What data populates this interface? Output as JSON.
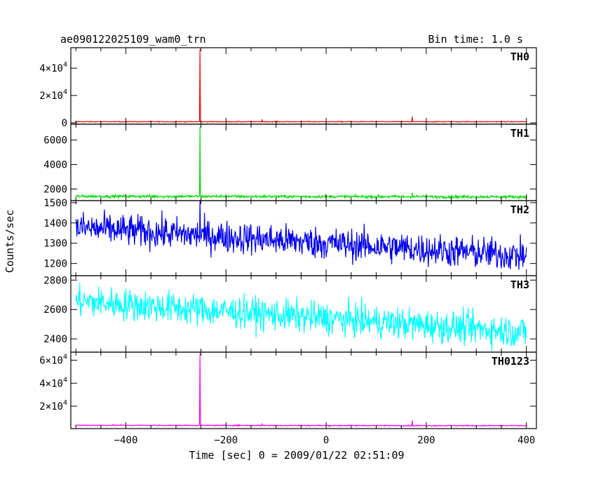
{
  "header": {
    "title": "ae090122025109_wam0_trn",
    "bin_time": "Bin time: 1.0 s"
  },
  "chart_data": {
    "type": "line",
    "xlabel": "Time [sec] 0 = 2009/01/22 02:51:09",
    "ylabel": "Counts/sec",
    "xlim": [
      -510,
      420
    ],
    "xticks": [
      -400,
      -200,
      0,
      200,
      400
    ],
    "xtick_labels": [
      "−400",
      "−200",
      "0",
      "200",
      "400"
    ],
    "panels": [
      {
        "name": "TH0",
        "color": "#ff0000",
        "ylim": [
          -1000,
          55000
        ],
        "yticks": [
          0,
          20000,
          40000
        ],
        "ytick_labels": [
          {
            "base": "0",
            "exp": ""
          },
          {
            "base": "2×10",
            "exp": "4"
          },
          {
            "base": "4×10",
            "exp": "4"
          }
        ],
        "baseline": 800,
        "noise": 150,
        "trend": 0,
        "spikes": [
          {
            "x": -252,
            "y": 54000
          },
          {
            "x": -128,
            "y": 2500
          },
          {
            "x": 172,
            "y": 4500
          }
        ]
      },
      {
        "name": "TH1",
        "color": "#00dd00",
        "ylim": [
          1050,
          7300
        ],
        "yticks": [
          2000,
          4000,
          6000
        ],
        "ytick_labels": [
          {
            "base": "2000",
            "exp": ""
          },
          {
            "base": "4000",
            "exp": ""
          },
          {
            "base": "6000",
            "exp": ""
          }
        ],
        "baseline": 1380,
        "noise": 60,
        "trend": -0.05,
        "spikes": [
          {
            "x": -252,
            "y": 7100
          },
          {
            "x": 172,
            "y": 1700
          }
        ]
      },
      {
        "name": "TH2",
        "color": "#0000ee",
        "ylim": [
          1140,
          1510
        ],
        "yticks": [
          1200,
          1300,
          1400,
          1500
        ],
        "ytick_labels": [
          {
            "base": "1200",
            "exp": ""
          },
          {
            "base": "1300",
            "exp": ""
          },
          {
            "base": "1400",
            "exp": ""
          },
          {
            "base": "1500",
            "exp": ""
          }
        ],
        "baseline": 1300,
        "noise": 40,
        "trend": -0.155,
        "spikes": [
          {
            "x": -252,
            "y": 1510
          }
        ]
      },
      {
        "name": "TH3",
        "color": "#00ffff",
        "ylim": [
          2310,
          2830
        ],
        "yticks": [
          2400,
          2600,
          2800
        ],
        "ytick_labels": [
          {
            "base": "2400",
            "exp": ""
          },
          {
            "base": "2600",
            "exp": ""
          },
          {
            "base": "2800",
            "exp": ""
          }
        ],
        "baseline": 2540,
        "noise": 55,
        "trend": -0.235,
        "spikes": []
      },
      {
        "name": "TH0123",
        "color": "#ff00ff",
        "ylim": [
          500,
          67000
        ],
        "yticks": [
          20000,
          40000,
          60000
        ],
        "ytick_labels": [
          {
            "base": "2×10",
            "exp": "4"
          },
          {
            "base": "4×10",
            "exp": "4"
          },
          {
            "base": "6×10",
            "exp": "4"
          }
        ],
        "baseline": 3200,
        "noise": 250,
        "trend": -0.4,
        "spikes": [
          {
            "x": -252,
            "y": 66000
          },
          {
            "x": -128,
            "y": 5000
          },
          {
            "x": 172,
            "y": 7500
          }
        ]
      }
    ]
  }
}
